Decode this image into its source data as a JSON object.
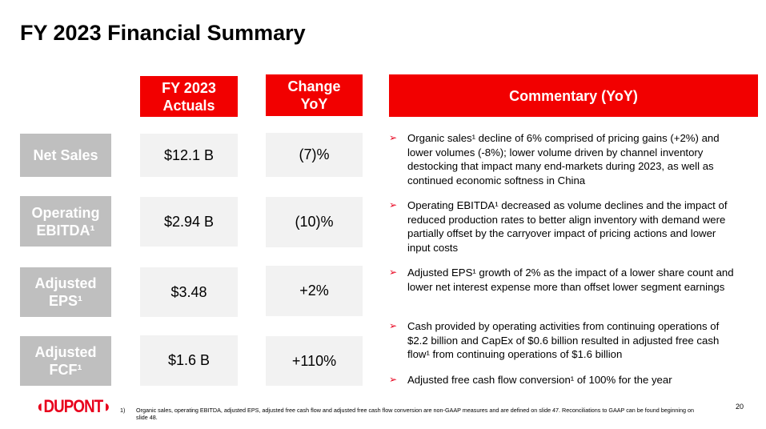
{
  "title": "FY 2023 Financial Summary",
  "headers": {
    "actuals": "FY 2023 Actuals",
    "change": "Change YoY",
    "commentary": "Commentary (YoY)"
  },
  "rows": [
    {
      "label": "Net Sales",
      "actual": "$12.1 B",
      "change": "(7)%"
    },
    {
      "label": "Operating EBITDA¹",
      "actual": "$2.94 B",
      "change": "(10)%"
    },
    {
      "label": "Adjusted EPS¹",
      "actual": "$3.48",
      "change": "+2%"
    },
    {
      "label": "Adjusted FCF¹",
      "actual": "$1.6 B",
      "change": "+110%"
    }
  ],
  "commentary": [
    "Organic sales¹ decline of 6% comprised of pricing gains (+2%) and lower volumes (-8%); lower volume driven by channel inventory destocking that impact many end-markets during 2023, as well as continued economic softness in China",
    "Operating EBITDA¹ decreased as volume declines and the impact of reduced production rates to better align inventory with demand were partially offset by the carryover impact of pricing actions and lower input costs",
    "Adjusted EPS¹ growth of 2% as the impact of a lower share count and lower net interest expense more than offset lower segment earnings",
    "Cash provided by operating activities from continuing operations of $2.2 billion and CapEx of $0.6 billion resulted in adjusted free cash flow¹ from continuing operations of $1.6 billion",
    "Adjusted free cash flow conversion¹ of 100% for the year"
  ],
  "bullet_icon": "arrowhead-right-icon",
  "logo": "DUPONT",
  "footnote": {
    "number": "1)",
    "text": "Organic sales, operating EBITDA, adjusted EPS, adjusted free cash flow and adjusted free cash flow conversion are non-GAAP measures and are defined on slide 47. Reconciliations to GAAP can be found beginning on slide 48."
  },
  "page_number": "20",
  "colors": {
    "accent_red": "#f20000",
    "label_gray": "#bfbfbf",
    "value_bg": "#f2f2f2"
  }
}
